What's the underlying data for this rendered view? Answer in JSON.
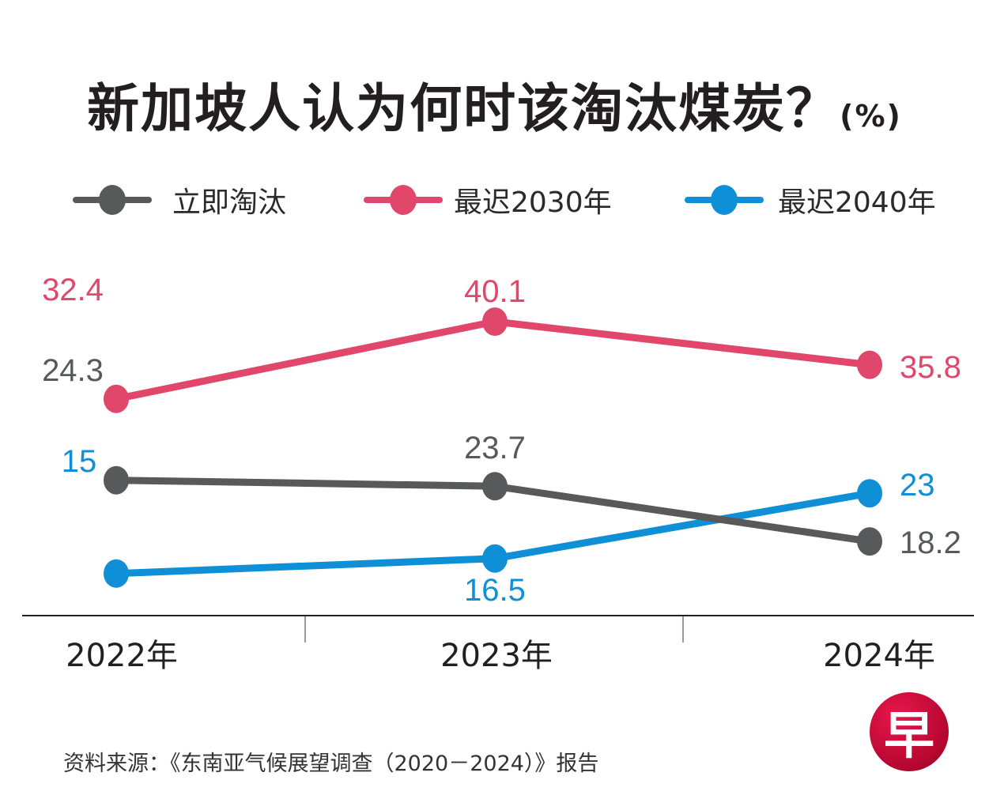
{
  "title": {
    "main": "新加坡人认为何时该淘汰煤炭？",
    "unit": "(%)"
  },
  "legend": [
    {
      "label": "立即淘汰",
      "color": "#58595b"
    },
    {
      "label": "最迟2030年",
      "color": "#e0476b"
    },
    {
      "label": "最迟2040年",
      "color": "#0f8fd6"
    }
  ],
  "source": "资料来源：《东南亚气候展望调查（2020－2024）》报告",
  "logo": {
    "glyph": "早"
  },
  "chart_data": {
    "type": "line",
    "title": "新加坡人认为何时该淘汰煤炭？(%)",
    "xlabel": "",
    "ylabel": "%",
    "categories": [
      "2022年",
      "2023年",
      "2024年"
    ],
    "ylim": [
      0,
      45
    ],
    "grid": false,
    "legend_position": "top",
    "series": [
      {
        "name": "立即淘汰",
        "color": "#58595b",
        "values": [
          24.3,
          23.7,
          18.2
        ],
        "labels": [
          "24.3",
          "23.7",
          "18.2"
        ]
      },
      {
        "name": "最迟2030年",
        "color": "#e0476b",
        "values": [
          32.4,
          40.1,
          35.8
        ],
        "labels": [
          "32.4",
          "40.1",
          "35.8"
        ]
      },
      {
        "name": "最迟2040年",
        "color": "#0f8fd6",
        "values": [
          15,
          16.5,
          23
        ],
        "labels": [
          "15",
          "16.5",
          "23"
        ]
      }
    ]
  }
}
